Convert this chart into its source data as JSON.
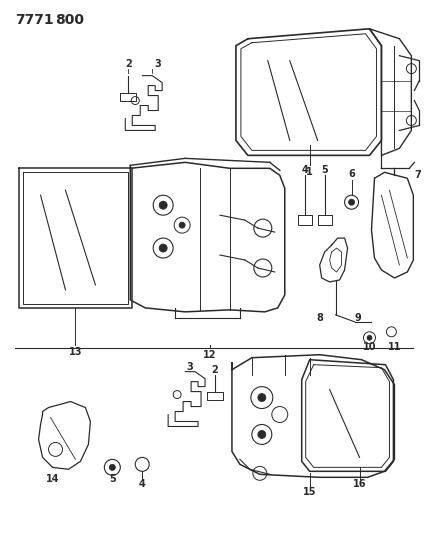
{
  "title_part1": "7771",
  "title_part2": "800",
  "bg": "#ffffff",
  "lc": "#2a2a2a",
  "figsize": [
    4.28,
    5.33
  ],
  "dpi": 100
}
